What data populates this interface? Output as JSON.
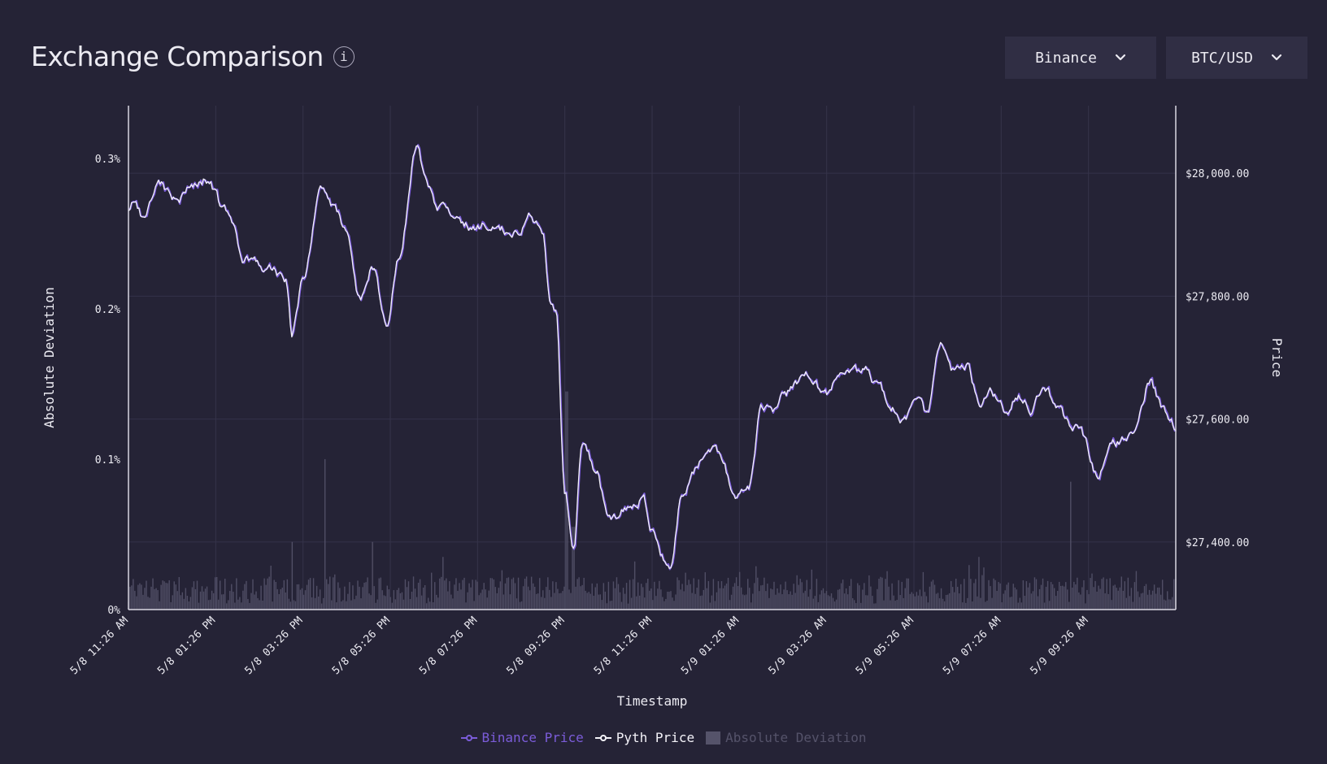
{
  "header": {
    "title": "Exchange Comparison",
    "info_glyph": "i",
    "exchange_select": {
      "value": "Binance"
    },
    "pair_select": {
      "value": "BTC/USD"
    }
  },
  "colors": {
    "background": "#252336",
    "binance": "#7b5cd9",
    "pyth": "#f3f2f8",
    "deviation": "#55536a",
    "grid": "#35334a"
  },
  "chart_data": {
    "type": "line",
    "xlabel": "Timestamp",
    "ylabel_left": "Absolute Deviation",
    "ylabel_right": "Price",
    "x_ticks": [
      "5/8 11:26 AM",
      "5/8 01:26 PM",
      "5/8 03:26 PM",
      "5/8 05:26 PM",
      "5/8 07:26 PM",
      "5/8 09:26 PM",
      "5/8 11:26 PM",
      "5/9 01:26 AM",
      "5/9 03:26 AM",
      "5/9 05:26 AM",
      "5/9 07:26 AM",
      "5/9 09:26 AM"
    ],
    "left_axis": {
      "ticks": [
        "0%",
        "0.1%",
        "0.2%",
        "0.3%"
      ],
      "tick_values": [
        0,
        0.1,
        0.2,
        0.3
      ],
      "range": [
        0,
        0.335
      ]
    },
    "right_axis": {
      "ticks": [
        "$27,400.00",
        "$27,600.00",
        "$27,800.00",
        "$28,000.00"
      ],
      "tick_values": [
        27400,
        27600,
        27800,
        28000
      ],
      "range": [
        27290,
        28110
      ]
    },
    "hours_span": 24,
    "price_anchors": [
      [
        0,
        27935
      ],
      [
        0.15,
        27955
      ],
      [
        0.35,
        27925
      ],
      [
        0.7,
        27975
      ],
      [
        1.1,
        27960
      ],
      [
        1.5,
        27980
      ],
      [
        1.8,
        27990
      ],
      [
        2.2,
        27940
      ],
      [
        2.7,
        27860
      ],
      [
        3.2,
        27850
      ],
      [
        3.6,
        27830
      ],
      [
        3.75,
        27740
      ],
      [
        4.0,
        27830
      ],
      [
        4.4,
        27985
      ],
      [
        4.7,
        27940
      ],
      [
        5.0,
        27900
      ],
      [
        5.3,
        27800
      ],
      [
        5.6,
        27850
      ],
      [
        5.9,
        27755
      ],
      [
        6.2,
        27870
      ],
      [
        6.6,
        28050
      ],
      [
        6.8,
        27990
      ],
      [
        7.1,
        27945
      ],
      [
        7.5,
        27920
      ],
      [
        7.9,
        27915
      ],
      [
        8.3,
        27920
      ],
      [
        8.8,
        27900
      ],
      [
        9.2,
        27930
      ],
      [
        9.5,
        27905
      ],
      [
        9.65,
        27800
      ],
      [
        9.8,
        27780
      ],
      [
        10.0,
        27480
      ],
      [
        10.2,
        27390
      ],
      [
        10.4,
        27560
      ],
      [
        10.7,
        27520
      ],
      [
        11.0,
        27440
      ],
      [
        11.4,
        27450
      ],
      [
        11.8,
        27470
      ],
      [
        12.0,
        27420
      ],
      [
        12.4,
        27355
      ],
      [
        12.7,
        27480
      ],
      [
        13.0,
        27520
      ],
      [
        13.3,
        27550
      ],
      [
        13.6,
        27540
      ],
      [
        13.9,
        27470
      ],
      [
        14.2,
        27490
      ],
      [
        14.5,
        27620
      ],
      [
        14.8,
        27610
      ],
      [
        15.0,
        27640
      ],
      [
        15.3,
        27650
      ],
      [
        15.6,
        27670
      ],
      [
        16.0,
        27640
      ],
      [
        16.3,
        27680
      ],
      [
        16.6,
        27670
      ],
      [
        16.9,
        27680
      ],
      [
        17.2,
        27650
      ],
      [
        17.5,
        27625
      ],
      [
        17.8,
        27595
      ],
      [
        18.0,
        27640
      ],
      [
        18.3,
        27610
      ],
      [
        18.6,
        27720
      ],
      [
        18.9,
        27680
      ],
      [
        19.2,
        27690
      ],
      [
        19.5,
        27630
      ],
      [
        19.8,
        27640
      ],
      [
        20.1,
        27610
      ],
      [
        20.4,
        27640
      ],
      [
        20.7,
        27620
      ],
      [
        21.0,
        27650
      ],
      [
        21.3,
        27620
      ],
      [
        21.6,
        27590
      ],
      [
        21.9,
        27570
      ],
      [
        22.2,
        27510
      ],
      [
        22.5,
        27555
      ],
      [
        22.8,
        27565
      ],
      [
        23.1,
        27590
      ],
      [
        23.4,
        27660
      ],
      [
        23.7,
        27620
      ],
      [
        24.0,
        27590
      ]
    ],
    "deviation_spikes": [
      [
        3.75,
        0.045
      ],
      [
        4.5,
        0.1
      ],
      [
        5.6,
        0.045
      ],
      [
        7.2,
        0.035
      ],
      [
        10.05,
        0.145
      ],
      [
        10.2,
        0.055
      ],
      [
        11.6,
        0.032
      ],
      [
        14.0,
        0.025
      ],
      [
        19.5,
        0.035
      ],
      [
        19.6,
        0.028
      ],
      [
        21.6,
        0.085
      ]
    ],
    "legend": [
      {
        "name": "Binance Price"
      },
      {
        "name": "Pyth Price"
      },
      {
        "name": "Absolute Deviation"
      }
    ]
  }
}
